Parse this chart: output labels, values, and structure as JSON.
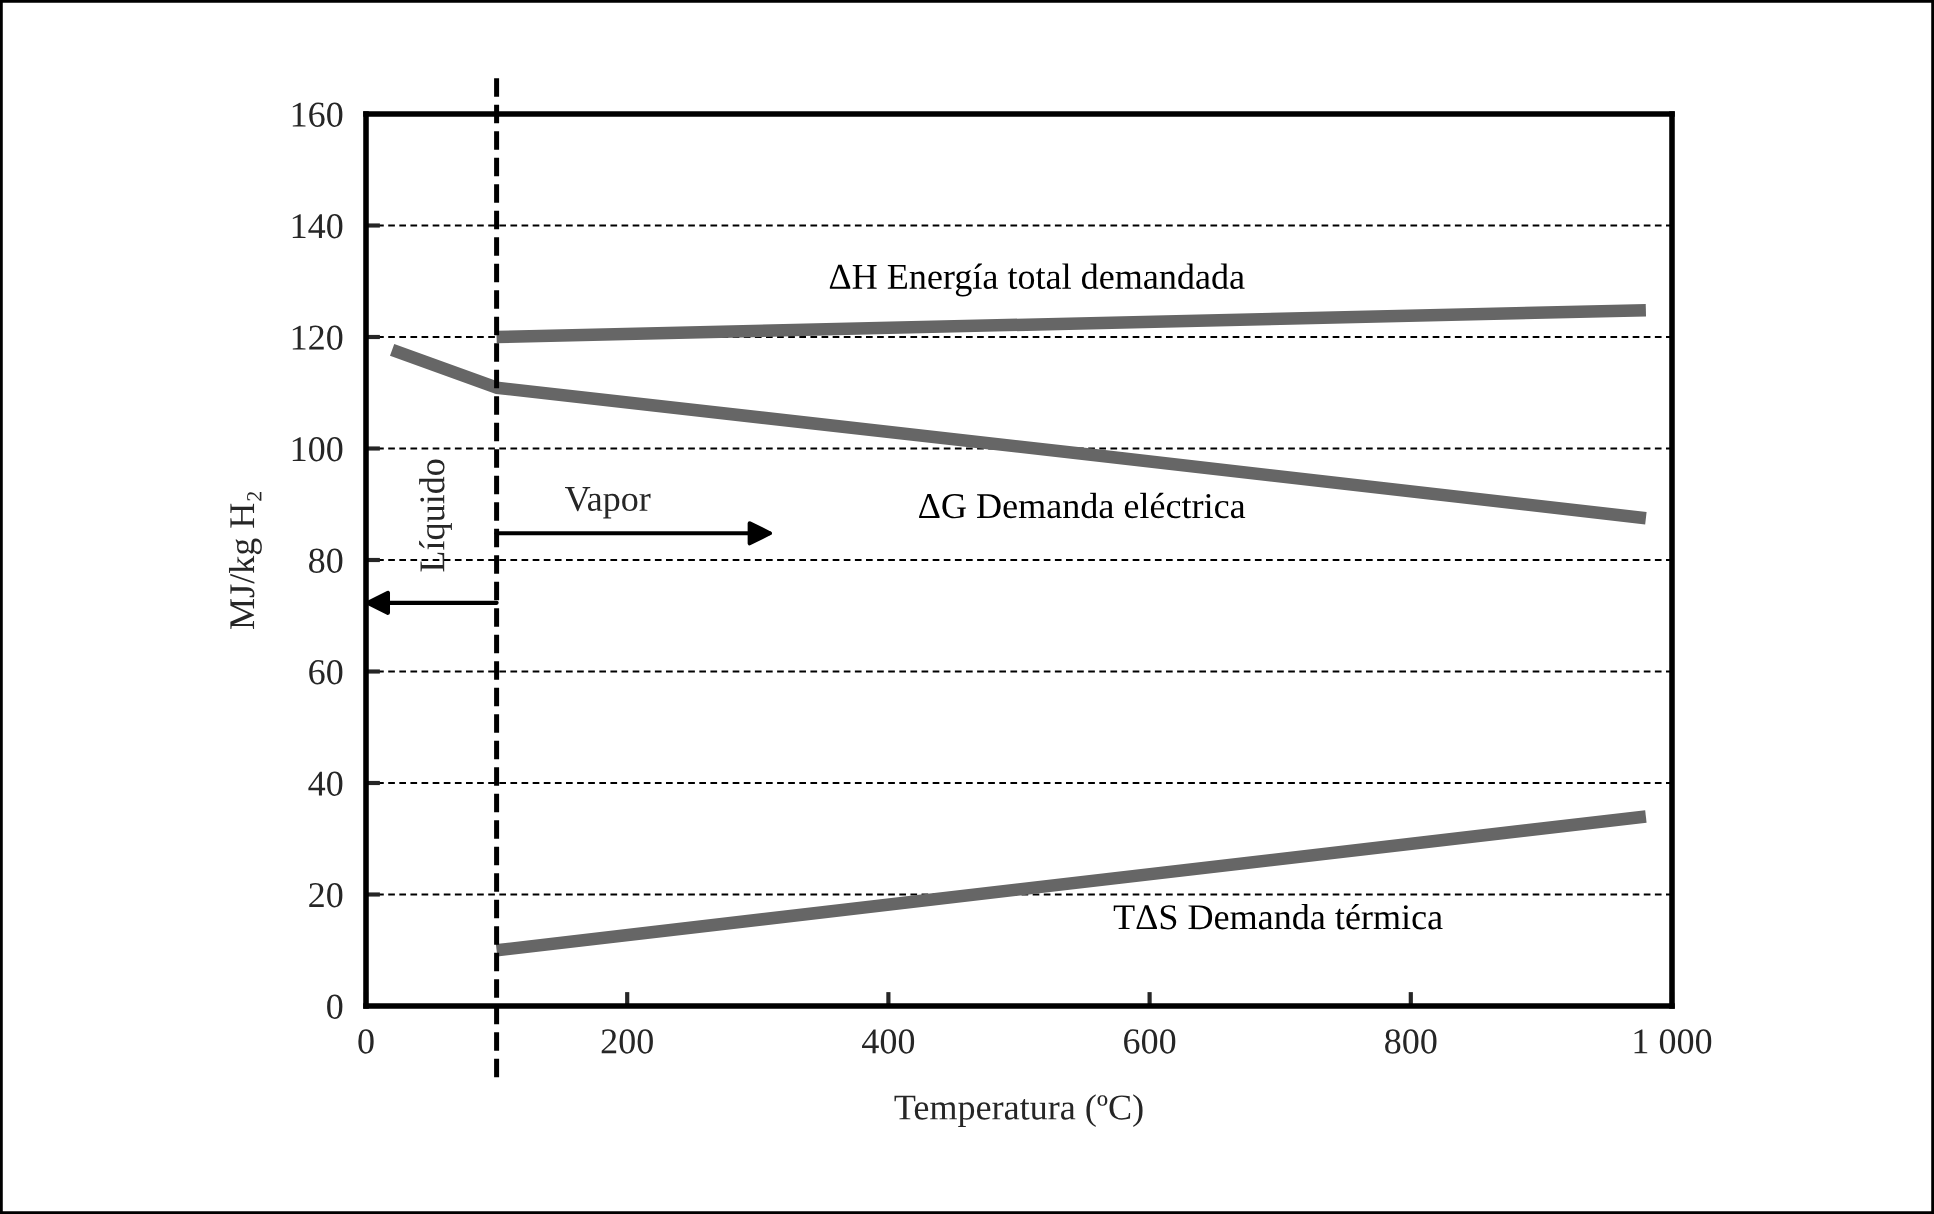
{
  "chart_data": {
    "type": "line",
    "xlabel": "Temperatura (ºC)",
    "ylabel": "MJ/kg H₂",
    "xlim": [
      0,
      1000
    ],
    "xticks": [
      0,
      200,
      400,
      600,
      800,
      {
        "value": 1000,
        "label": "1 000"
      }
    ],
    "ylim": [
      0,
      160
    ],
    "yticks": [
      0,
      20,
      40,
      60,
      80,
      100,
      120,
      140,
      160
    ],
    "grid": "y",
    "line_style": "solid",
    "marker": "none",
    "legend": false,
    "series": [
      {
        "name": "ΔH Energía total demandada",
        "color": "#666666",
        "x": [
          100,
          980
        ],
        "values": [
          120,
          124.8
        ]
      },
      {
        "name": "ΔG Demanda eléctrica",
        "color": "#666666",
        "x": [
          20,
          100,
          562,
          980
        ],
        "values": [
          117.7,
          110.9,
          98.7,
          87.5
        ]
      },
      {
        "name": "TΔS Demanda térmica",
        "color": "#666666",
        "x": [
          100,
          980
        ],
        "values": [
          10,
          34
        ]
      }
    ],
    "ref_lines": [
      {
        "axis": "x",
        "value": 100,
        "color": "#000000",
        "line_style": "dashed"
      }
    ],
    "annotations": [
      "Vapor",
      "Líquido"
    ]
  }
}
